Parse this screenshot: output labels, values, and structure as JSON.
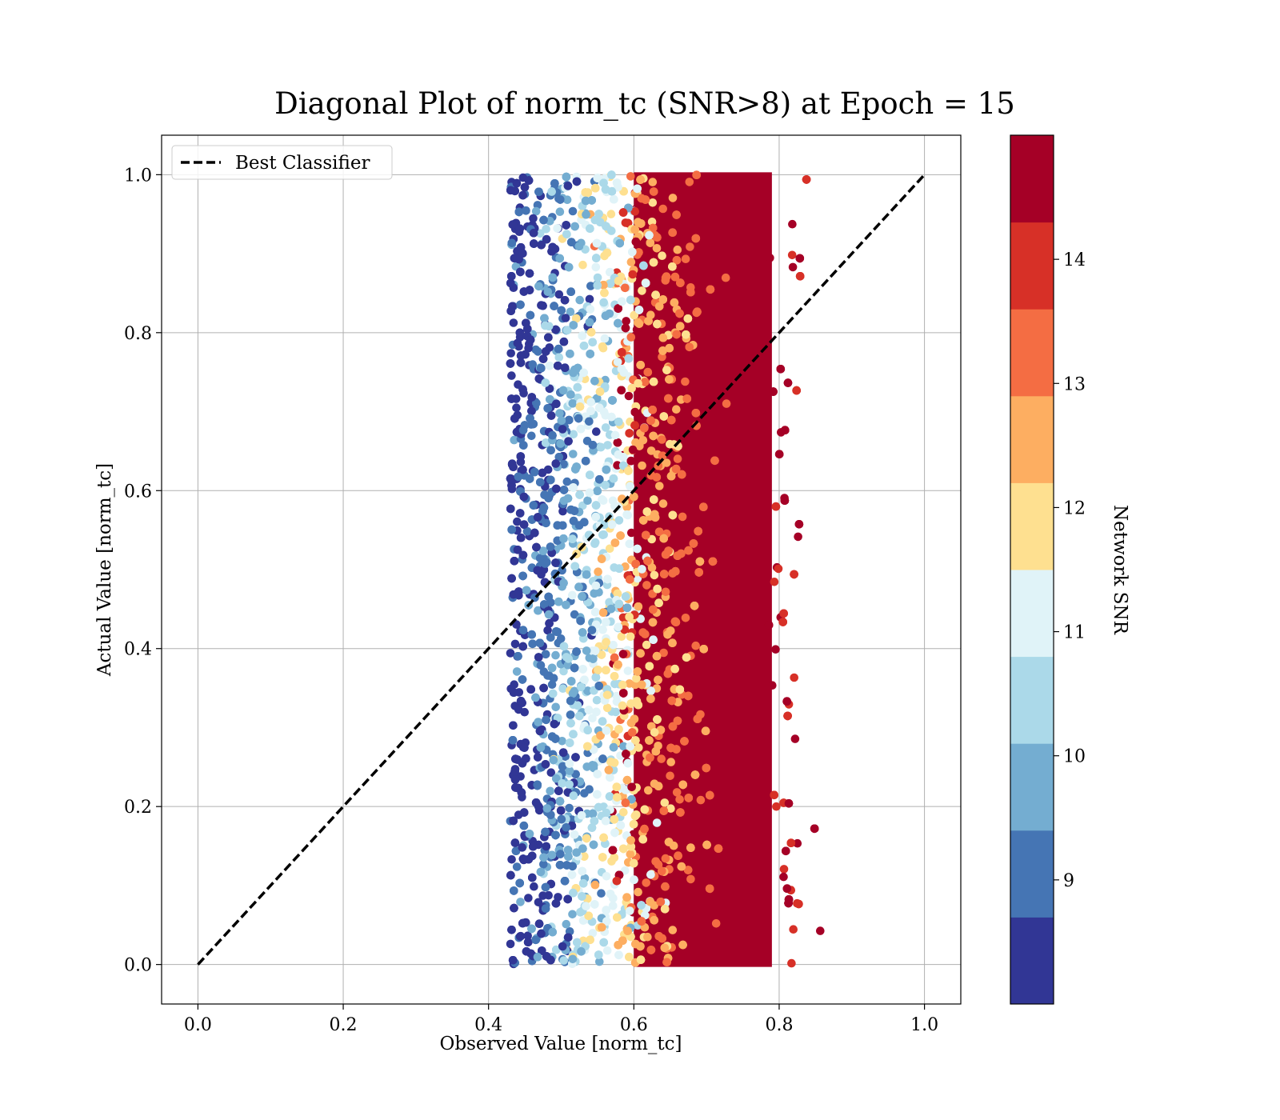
{
  "chart_data": {
    "type": "scatter",
    "title": "Diagonal Plot of norm_tc (SNR>8) at Epoch = 15",
    "xlabel": "Observed Value [norm_tc]",
    "ylabel": "Actual Value [norm_tc]",
    "xlim": [
      -0.05,
      1.05
    ],
    "ylim": [
      -0.05,
      1.05
    ],
    "xticks": [
      "0.0",
      "0.2",
      "0.4",
      "0.6",
      "0.8",
      "1.0"
    ],
    "yticks": [
      "0.0",
      "0.2",
      "0.4",
      "0.6",
      "0.8",
      "1.0"
    ],
    "grid": true,
    "legend": {
      "position": "top-left",
      "entries": [
        {
          "label": "Best Classifier",
          "style": "dashed",
          "color": "#000000"
        }
      ]
    },
    "reference_line": {
      "label": "Best Classifier",
      "x": [
        0.0,
        1.0
      ],
      "y": [
        0.0,
        1.0
      ]
    },
    "points_summary": {
      "x_range": [
        0.42,
        0.87
      ],
      "y_range": [
        0.0,
        1.0
      ],
      "color_by": "Network SNR",
      "description_trend": "low SNR near x=0.43-0.5, high SNR concentrated at x=0.6-0.8"
    },
    "colorbar": {
      "label": "Network SNR",
      "range": [
        8,
        15
      ],
      "ticks": [
        "9",
        "10",
        "11",
        "12",
        "13",
        "14"
      ],
      "colors": [
        "#313695",
        "#4575b4",
        "#74add1",
        "#abd9e9",
        "#e0f3f8",
        "#fee090",
        "#fdae61",
        "#f46d43",
        "#d73027",
        "#a50026"
      ]
    }
  }
}
